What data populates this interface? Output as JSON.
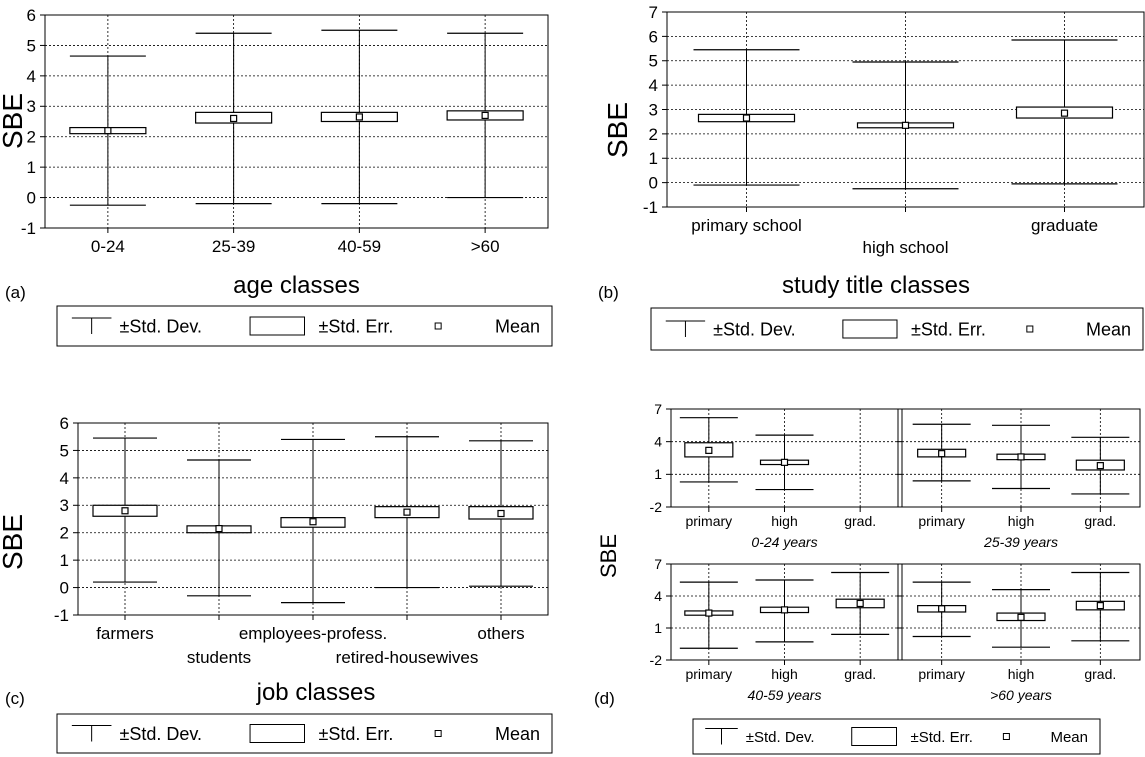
{
  "legend": {
    "sd_label": "±Std. Dev.",
    "se_label": "±Std. Err.",
    "mean_label": "Mean"
  },
  "chart_data": [
    {
      "panel": "(a)",
      "type": "box",
      "ylabel": "SBE",
      "xlabel": "age classes",
      "ylim": [
        -1,
        6
      ],
      "yticks": [
        -1,
        0,
        1,
        2,
        3,
        4,
        5,
        6
      ],
      "grid": true,
      "legend_position": "bottom",
      "categories": [
        "0-24",
        "25-39",
        "40-59",
        ">60"
      ],
      "mean": [
        2.2,
        2.6,
        2.65,
        2.7
      ],
      "se_low": [
        2.1,
        2.45,
        2.5,
        2.55
      ],
      "se_high": [
        2.3,
        2.8,
        2.8,
        2.85
      ],
      "sd_low": [
        -0.25,
        -0.2,
        -0.2,
        0.0
      ],
      "sd_high": [
        4.65,
        5.4,
        5.5,
        5.4
      ]
    },
    {
      "panel": "(b)",
      "type": "box",
      "ylabel": "SBE",
      "xlabel": "study title classes",
      "ylim": [
        -1,
        7
      ],
      "yticks": [
        -1,
        0,
        1,
        2,
        3,
        4,
        5,
        6,
        7
      ],
      "grid": true,
      "legend_position": "bottom",
      "categories": [
        "primary school",
        "high school",
        "graduate"
      ],
      "mean": [
        2.65,
        2.35,
        2.85
      ],
      "se_low": [
        2.5,
        2.25,
        2.65
      ],
      "se_high": [
        2.8,
        2.45,
        3.1
      ],
      "sd_low": [
        -0.1,
        -0.25,
        -0.05
      ],
      "sd_high": [
        5.45,
        4.95,
        5.85
      ]
    },
    {
      "panel": "(c)",
      "type": "box",
      "ylabel": "SBE",
      "xlabel": "job classes",
      "ylim": [
        -1,
        6
      ],
      "yticks": [
        -1,
        0,
        1,
        2,
        3,
        4,
        5,
        6
      ],
      "grid": true,
      "legend_position": "bottom",
      "categories": [
        "farmers",
        "students",
        "employees-profess.",
        "retired-housewives",
        "others"
      ],
      "mean": [
        2.8,
        2.15,
        2.4,
        2.75,
        2.7
      ],
      "se_low": [
        2.6,
        2.0,
        2.2,
        2.55,
        2.5
      ],
      "se_high": [
        3.0,
        2.25,
        2.55,
        2.95,
        2.95
      ],
      "sd_low": [
        0.2,
        -0.3,
        -0.55,
        0.0,
        0.05
      ],
      "sd_high": [
        5.45,
        4.65,
        5.4,
        5.5,
        5.35
      ]
    },
    {
      "panel": "(d)",
      "type": "box",
      "ylabel": "SBE",
      "ylim": [
        -2,
        7
      ],
      "yticks": [
        -2,
        1,
        4,
        7
      ],
      "grid": true,
      "legend_position": "bottom",
      "categories": [
        "primary",
        "high",
        "grad."
      ],
      "subplots": [
        {
          "title": "0-24 years",
          "mean": [
            3.2,
            2.1,
            null
          ],
          "se_low": [
            2.6,
            1.9,
            null
          ],
          "se_high": [
            3.9,
            2.3,
            null
          ],
          "sd_low": [
            0.3,
            -0.4,
            null
          ],
          "sd_high": [
            6.2,
            4.6,
            null
          ]
        },
        {
          "title": "25-39 years",
          "mean": [
            2.9,
            2.6,
            1.8
          ],
          "se_low": [
            2.6,
            2.35,
            1.4
          ],
          "se_high": [
            3.3,
            2.85,
            2.3
          ],
          "sd_low": [
            0.4,
            -0.3,
            -0.8
          ],
          "sd_high": [
            5.6,
            5.5,
            4.4
          ]
        },
        {
          "title": "40-59 years",
          "mean": [
            2.4,
            2.7,
            3.3
          ],
          "se_low": [
            2.2,
            2.45,
            2.9
          ],
          "se_high": [
            2.6,
            2.95,
            3.7
          ],
          "sd_low": [
            -0.9,
            -0.3,
            0.4
          ],
          "sd_high": [
            5.3,
            5.5,
            6.2
          ]
        },
        {
          "title": ">60 years",
          "mean": [
            2.8,
            2.0,
            3.1
          ],
          "se_low": [
            2.5,
            1.7,
            2.7
          ],
          "se_high": [
            3.1,
            2.4,
            3.5
          ],
          "sd_low": [
            0.2,
            -0.8,
            -0.2
          ],
          "sd_high": [
            5.3,
            4.6,
            6.2
          ]
        }
      ]
    }
  ]
}
